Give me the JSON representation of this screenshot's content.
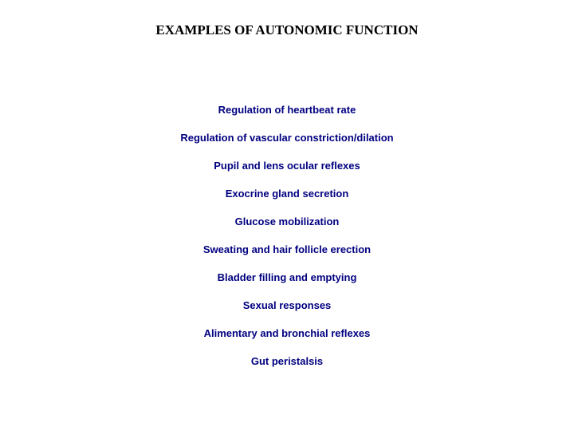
{
  "title": "EXAMPLES OF AUTONOMIC FUNCTION",
  "title_color": "#000000",
  "title_fontsize": 17,
  "item_color": "#000080",
  "item_fontsize": 13,
  "background_color": "#ffffff",
  "items": [
    "Regulation of heartbeat rate",
    "Regulation of vascular constriction/dilation",
    "Pupil and lens ocular reflexes",
    "Exocrine gland secretion",
    "Glucose mobilization",
    "Sweating and hair follicle erection",
    "Bladder filling and emptying",
    "Sexual responses",
    "Alimentary and bronchial reflexes",
    "Gut peristalsis"
  ]
}
